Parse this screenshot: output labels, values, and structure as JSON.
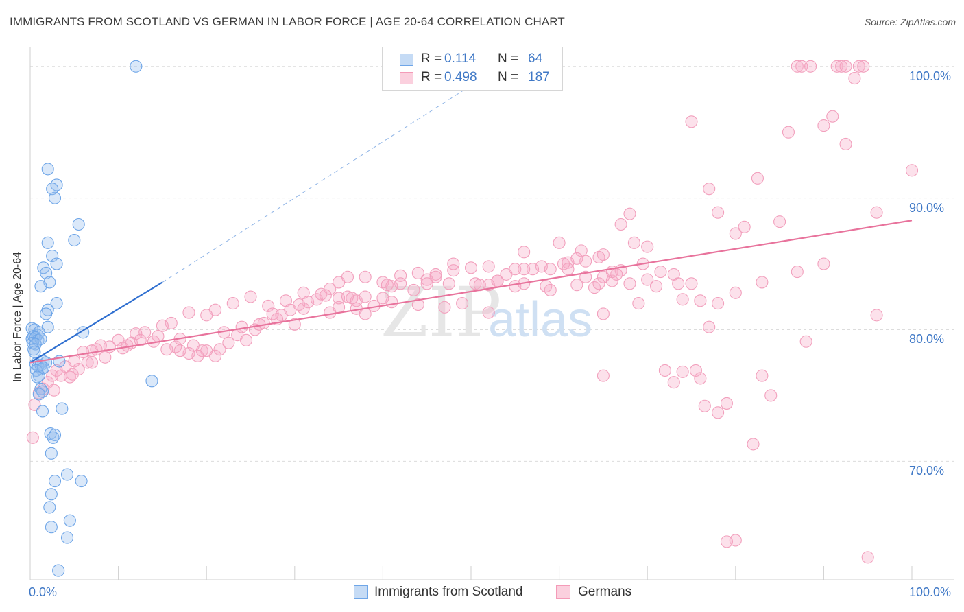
{
  "title": "IMMIGRANTS FROM SCOTLAND VS GERMAN IN LABOR FORCE | AGE 20-64 CORRELATION CHART",
  "source": "Source: ZipAtlas.com",
  "watermark": {
    "zip": "ZIP",
    "atlas": "atlas"
  },
  "legend_top": {
    "rows": [
      {
        "r_label": "R =",
        "r_value": "0.114",
        "n_label": "N =",
        "n_value": "64"
      },
      {
        "r_label": "R =",
        "r_value": "0.498",
        "n_label": "N =",
        "n_value": "187"
      }
    ]
  },
  "colors": {
    "blue": "#6fa6e8",
    "blue_line": "#2f6fd0",
    "pink": "#f49bb8",
    "pink_line": "#e8739c",
    "label": "#3f78c6"
  },
  "chart_data": {
    "type": "scatter",
    "title": "IMMIGRANTS FROM SCOTLAND VS GERMAN IN LABOR FORCE | AGE 20-64 CORRELATION CHART",
    "xlabel": "",
    "ylabel": "In Labor Force | Age 20-64",
    "xlim": [
      0,
      100
    ],
    "ylim": [
      61.0,
      101.5
    ],
    "x_tick_labels": [
      "0.0%",
      "100.0%"
    ],
    "y_ticks": [
      70,
      80,
      90,
      100
    ],
    "y_tick_labels": [
      "70.0%",
      "80.0%",
      "90.0%",
      "100.0%"
    ],
    "legend": [
      "Immigrants from Scotland",
      "Germans"
    ],
    "series": [
      {
        "name": "Immigrants from Scotland",
        "R": 0.114,
        "N": 64,
        "trend": {
          "x": [
            0.0,
            15.0
          ],
          "y": [
            77.5,
            83.6
          ],
          "dashed_to": [
            52.0,
            99.4
          ]
        },
        "points": [
          [
            12,
            100
          ],
          [
            2,
            92.2
          ],
          [
            3,
            91
          ],
          [
            2.5,
            90.7
          ],
          [
            2.8,
            90
          ],
          [
            5.5,
            88
          ],
          [
            5,
            86.8
          ],
          [
            2,
            86.6
          ],
          [
            2.5,
            85.6
          ],
          [
            3,
            85
          ],
          [
            1.5,
            84.7
          ],
          [
            1.8,
            84.3
          ],
          [
            2.2,
            83.6
          ],
          [
            1.2,
            83.3
          ],
          [
            3,
            82
          ],
          [
            2,
            81.5
          ],
          [
            1.8,
            81.2
          ],
          [
            2,
            80.2
          ],
          [
            6,
            79.8
          ],
          [
            0.2,
            80.1
          ],
          [
            0.5,
            80
          ],
          [
            0.8,
            79.6
          ],
          [
            1,
            79.8
          ],
          [
            0.2,
            79.3
          ],
          [
            0.4,
            79.5
          ],
          [
            0.6,
            79.4
          ],
          [
            0.9,
            79.2
          ],
          [
            1.2,
            79.3
          ],
          [
            0.3,
            79
          ],
          [
            0.6,
            78.9
          ],
          [
            0.4,
            78.5
          ],
          [
            0.5,
            78.3
          ],
          [
            3.3,
            77.6
          ],
          [
            1.5,
            77.6
          ],
          [
            1.8,
            77.5
          ],
          [
            0.6,
            77.4
          ],
          [
            0.9,
            77.2
          ],
          [
            1.2,
            77.3
          ],
          [
            1.3,
            77
          ],
          [
            0.7,
            76.9
          ],
          [
            1.5,
            77.1
          ],
          [
            1,
            76.5
          ],
          [
            0.8,
            76.4
          ],
          [
            13.8,
            76.1
          ],
          [
            1.2,
            75.5
          ],
          [
            1.4,
            75.3
          ],
          [
            1,
            75.1
          ],
          [
            3.6,
            74
          ],
          [
            1.4,
            73.8
          ],
          [
            2.3,
            72.1
          ],
          [
            2.8,
            72
          ],
          [
            2.6,
            71.8
          ],
          [
            2.4,
            70.6
          ],
          [
            4.2,
            69
          ],
          [
            5.8,
            68.5
          ],
          [
            2.8,
            68.5
          ],
          [
            2.4,
            67.5
          ],
          [
            2.2,
            66.5
          ],
          [
            4.5,
            65.5
          ],
          [
            2.4,
            65
          ],
          [
            4.2,
            64.2
          ],
          [
            3.2,
            61.7
          ]
        ]
      },
      {
        "name": "Germans",
        "R": 0.498,
        "N": 187,
        "trend": {
          "x": [
            0.0,
            100.0
          ],
          "y": [
            77.5,
            88.3
          ]
        },
        "points": [
          [
            87,
            100
          ],
          [
            87.5,
            100
          ],
          [
            88.5,
            100
          ],
          [
            91.5,
            100
          ],
          [
            92,
            100
          ],
          [
            92.5,
            100
          ],
          [
            94,
            100
          ],
          [
            94.5,
            100
          ],
          [
            93.5,
            99.1
          ],
          [
            91,
            96.2
          ],
          [
            75,
            95.8
          ],
          [
            90,
            95.5
          ],
          [
            86,
            95
          ],
          [
            92.5,
            94.1
          ],
          [
            100,
            92.1
          ],
          [
            82.5,
            91.5
          ],
          [
            77,
            90.7
          ],
          [
            78,
            88.9
          ],
          [
            96,
            88.9
          ],
          [
            68,
            88.8
          ],
          [
            67,
            88
          ],
          [
            85,
            88.2
          ],
          [
            81,
            87.8
          ],
          [
            80,
            87.3
          ],
          [
            60,
            86.6
          ],
          [
            68.5,
            86.6
          ],
          [
            62.5,
            86
          ],
          [
            70,
            86.3
          ],
          [
            56,
            85.9
          ],
          [
            65,
            85.7
          ],
          [
            62,
            85.4
          ],
          [
            61,
            85.1
          ],
          [
            60.5,
            85
          ],
          [
            58,
            84.8
          ],
          [
            57,
            84.6
          ],
          [
            55,
            84.6
          ],
          [
            52,
            84.8
          ],
          [
            50,
            84.7
          ],
          [
            48,
            84.5
          ],
          [
            46,
            84.2
          ],
          [
            44,
            84.3
          ],
          [
            42,
            84.1
          ],
          [
            38,
            84
          ],
          [
            36,
            84
          ],
          [
            35,
            83.6
          ],
          [
            40,
            83.6
          ],
          [
            42,
            83.5
          ],
          [
            45,
            83.8
          ],
          [
            47.5,
            83.5
          ],
          [
            50.5,
            83.5
          ],
          [
            53,
            83.7
          ],
          [
            55,
            83.3
          ],
          [
            58.5,
            83.3
          ],
          [
            62,
            83.4
          ],
          [
            64,
            83.2
          ],
          [
            69.5,
            85
          ],
          [
            71.5,
            84.4
          ],
          [
            73,
            84.2
          ],
          [
            65,
            84
          ],
          [
            66,
            83.7
          ],
          [
            73.5,
            83.5
          ],
          [
            75,
            83.5
          ],
          [
            46,
            84
          ],
          [
            41,
            83.3
          ],
          [
            43.5,
            83
          ],
          [
            40.5,
            83.4
          ],
          [
            34,
            83.1
          ],
          [
            33,
            82.7
          ],
          [
            31,
            82.8
          ],
          [
            29,
            82.2
          ],
          [
            27,
            81.8
          ],
          [
            25,
            82.5
          ],
          [
            23,
            82
          ],
          [
            21,
            81.5
          ],
          [
            20,
            81.1
          ],
          [
            18,
            81.3
          ],
          [
            16,
            80.5
          ],
          [
            15,
            80.3
          ],
          [
            13,
            79.8
          ],
          [
            12,
            79.7
          ],
          [
            10,
            79.2
          ],
          [
            8,
            78.8
          ],
          [
            7,
            78.4
          ],
          [
            6,
            78.3
          ],
          [
            5,
            77.6
          ],
          [
            4,
            77.2
          ],
          [
            3,
            76.9
          ],
          [
            2.5,
            76.5
          ],
          [
            2,
            76
          ],
          [
            1.5,
            75.5
          ],
          [
            1,
            75.2
          ],
          [
            0.5,
            74.3
          ],
          [
            0.3,
            71.8
          ],
          [
            3.5,
            76.5
          ],
          [
            4.8,
            76.6
          ],
          [
            6.5,
            77.5
          ],
          [
            7.5,
            78.5
          ],
          [
            9,
            78.7
          ],
          [
            11,
            78.8
          ],
          [
            11.5,
            79
          ],
          [
            12.5,
            79.2
          ],
          [
            14,
            79.1
          ],
          [
            14.5,
            79.5
          ],
          [
            16.5,
            78.7
          ],
          [
            17,
            79.3
          ],
          [
            18.5,
            78.8
          ],
          [
            19.5,
            78.4
          ],
          [
            21,
            78
          ],
          [
            22,
            79.8
          ],
          [
            23.5,
            79.6
          ],
          [
            24.5,
            79.2
          ],
          [
            25.5,
            80
          ],
          [
            26.5,
            80.5
          ],
          [
            27.5,
            81.2
          ],
          [
            28.5,
            81.1
          ],
          [
            29.5,
            81.5
          ],
          [
            30.5,
            81.9
          ],
          [
            31.5,
            82.1
          ],
          [
            32.5,
            82.3
          ],
          [
            33.5,
            82.6
          ],
          [
            35,
            82.4
          ],
          [
            36.5,
            82.4
          ],
          [
            37,
            82.2
          ],
          [
            38,
            82.5
          ],
          [
            39,
            81.8
          ],
          [
            28,
            80.8
          ],
          [
            26,
            80.4
          ],
          [
            24,
            80.2
          ],
          [
            22.5,
            79
          ],
          [
            21.5,
            78.5
          ],
          [
            20,
            78.4
          ],
          [
            19,
            78
          ],
          [
            18,
            78.2
          ],
          [
            17,
            78.4
          ],
          [
            15.5,
            78.5
          ],
          [
            10.5,
            78.6
          ],
          [
            8.5,
            77.9
          ],
          [
            7,
            77.5
          ],
          [
            5.5,
            77
          ],
          [
            4.5,
            76.4
          ],
          [
            2.7,
            75.4
          ],
          [
            35,
            81.7
          ],
          [
            41,
            82.1
          ],
          [
            44,
            81.9
          ],
          [
            47,
            81.7
          ],
          [
            49,
            82
          ],
          [
            51,
            83.4
          ],
          [
            53,
            83.7
          ],
          [
            56,
            84.6
          ],
          [
            59,
            84.6
          ],
          [
            61,
            84.6
          ],
          [
            63,
            85.2
          ],
          [
            64.5,
            85.5
          ],
          [
            66,
            84.4
          ],
          [
            67,
            84.5
          ],
          [
            37,
            81.6
          ],
          [
            34,
            81.3
          ],
          [
            31,
            81.6
          ],
          [
            30,
            80.4
          ],
          [
            36,
            82.5
          ],
          [
            40,
            82.4
          ],
          [
            45,
            83.5
          ],
          [
            48,
            85
          ],
          [
            52,
            83.4
          ],
          [
            54,
            84.2
          ],
          [
            56,
            83.5
          ],
          [
            59,
            83
          ],
          [
            63,
            84
          ],
          [
            64.5,
            83.5
          ],
          [
            66.5,
            84.2
          ],
          [
            68,
            83.5
          ],
          [
            70,
            83.8
          ],
          [
            71,
            83.3
          ],
          [
            74,
            82.3
          ],
          [
            76,
            82.2
          ],
          [
            78,
            82
          ],
          [
            80,
            82.8
          ],
          [
            83,
            83.6
          ],
          [
            96,
            81.1
          ],
          [
            88,
            79.1
          ],
          [
            77,
            80.2
          ],
          [
            69,
            82
          ],
          [
            65,
            81.2
          ],
          [
            52,
            81.3
          ],
          [
            38,
            81.2
          ],
          [
            75.5,
            76.9
          ],
          [
            74,
            76.8
          ],
          [
            72,
            76.9
          ],
          [
            73,
            76
          ],
          [
            65,
            76.5
          ],
          [
            76,
            76.3
          ],
          [
            83,
            76.5
          ],
          [
            84,
            75
          ],
          [
            79,
            74.4
          ],
          [
            78,
            73.7
          ],
          [
            76.5,
            74.2
          ],
          [
            82,
            71.3
          ],
          [
            80,
            64
          ],
          [
            79,
            63.9
          ],
          [
            95,
            62.7
          ],
          [
            87,
            84.4
          ],
          [
            90,
            85
          ]
        ]
      }
    ]
  },
  "bottom_legend": [
    "Immigrants from Scotland",
    "Germans"
  ]
}
